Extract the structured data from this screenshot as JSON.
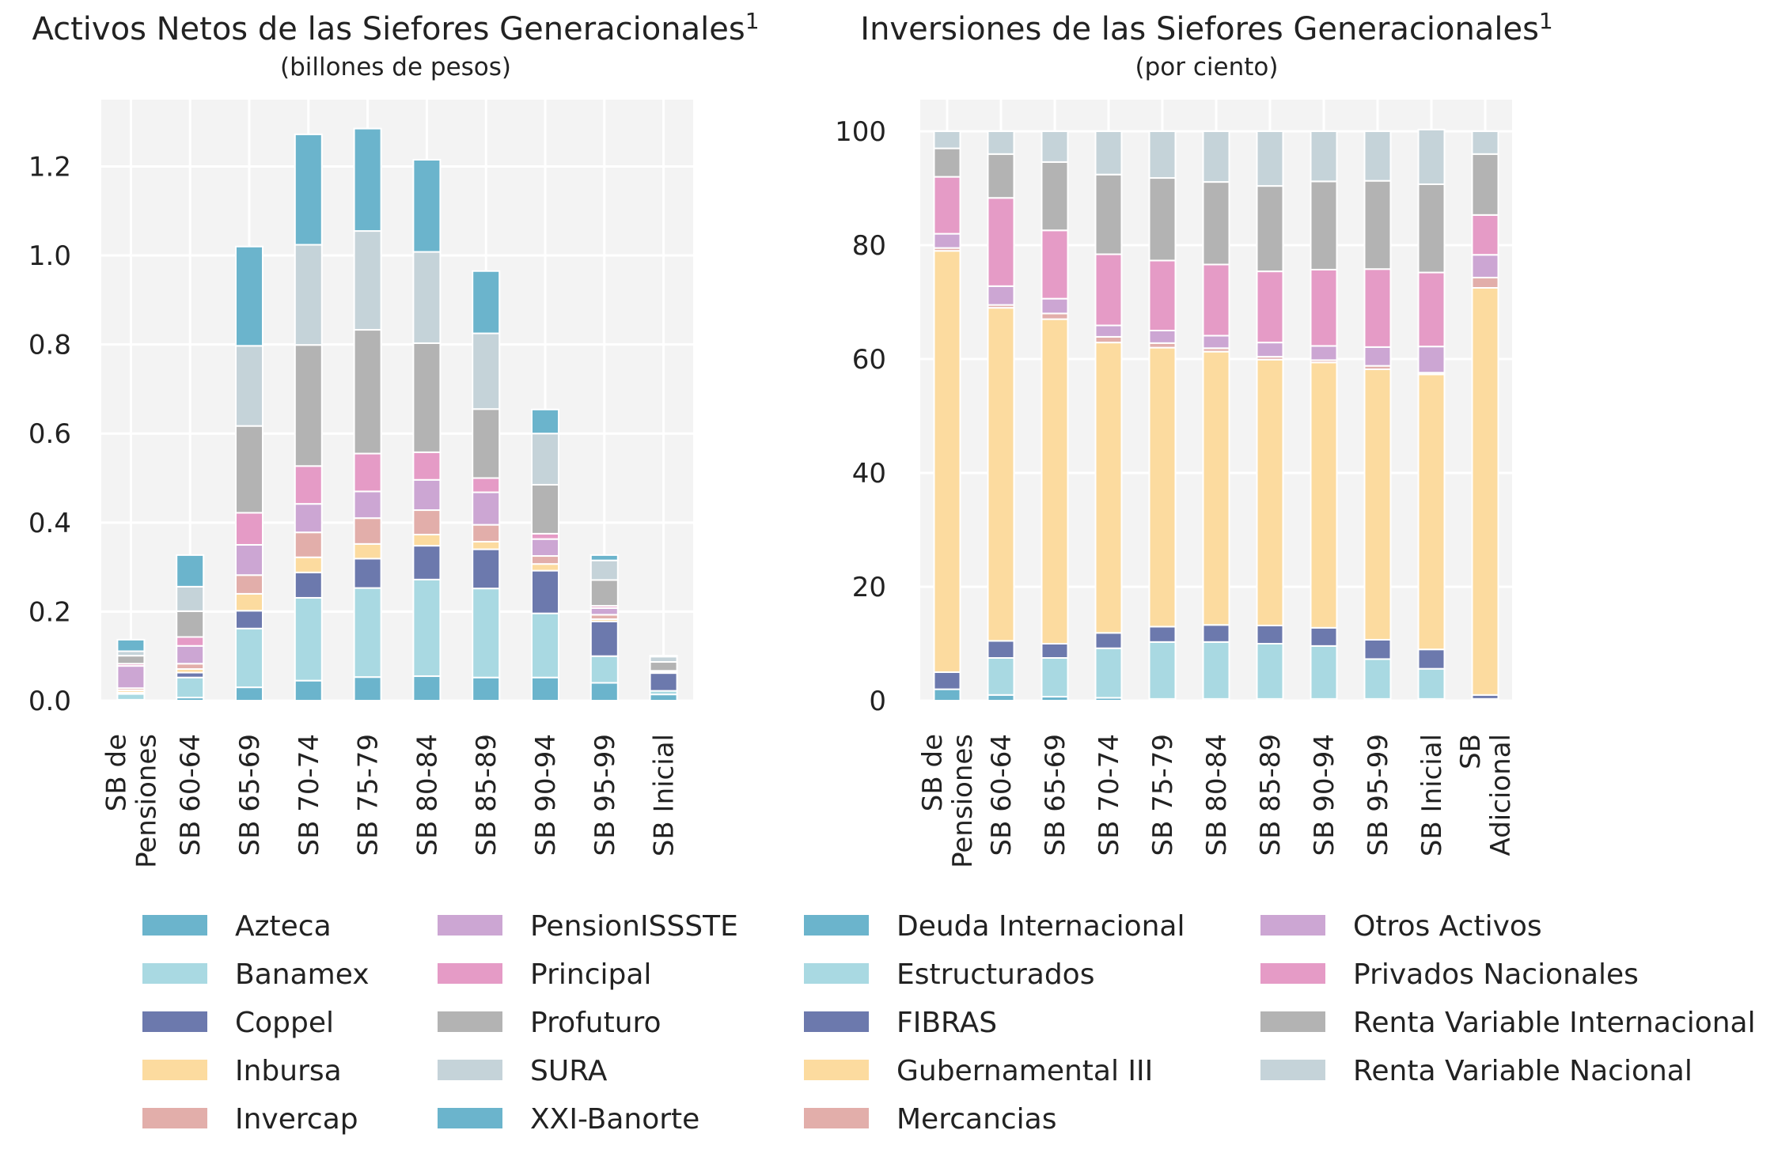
{
  "chart_data": [
    {
      "type": "bar",
      "stacked": true,
      "title": "Activos Netos de las Siefores Generacionales",
      "title_superscript": "1",
      "subtitle": "(billones de pesos)",
      "categories": [
        "SB de Pensiones",
        "SB 60-64",
        "SB 65-69",
        "SB 70-74",
        "SB 75-79",
        "SB 80-84",
        "SB 85-89",
        "SB 90-94",
        "SB 95-99",
        "SB Inicial"
      ],
      "ylim": [
        0,
        1.35
      ],
      "yticks": [
        "0.0",
        "0.2",
        "0.4",
        "0.6",
        "0.8",
        "1.0",
        "1.2"
      ],
      "grid": true,
      "series": [
        {
          "name": "Azteca",
          "color": "#6bb4cc",
          "values": [
            0.002,
            0.007,
            0.03,
            0.045,
            0.053,
            0.055,
            0.052,
            0.052,
            0.04,
            0.014
          ]
        },
        {
          "name": "Banamex",
          "color": "#a9d9e2",
          "values": [
            0.013,
            0.045,
            0.132,
            0.186,
            0.2,
            0.217,
            0.2,
            0.144,
            0.06,
            0.008
          ]
        },
        {
          "name": "Coppel",
          "color": "#6c79ad",
          "values": [
            0.003,
            0.011,
            0.04,
            0.057,
            0.066,
            0.076,
            0.088,
            0.096,
            0.078,
            0.04
          ]
        },
        {
          "name": "Inbursa",
          "color": "#fcdb9f",
          "values": [
            0.005,
            0.008,
            0.038,
            0.034,
            0.033,
            0.025,
            0.017,
            0.015,
            0.005,
            0.002
          ]
        },
        {
          "name": "Invercap",
          "color": "#e2aeaa",
          "values": [
            0.005,
            0.012,
            0.042,
            0.056,
            0.058,
            0.055,
            0.038,
            0.018,
            0.01,
            0.003
          ]
        },
        {
          "name": "PensionISSSTE",
          "color": "#cca6d3",
          "values": [
            0.05,
            0.04,
            0.068,
            0.064,
            0.06,
            0.068,
            0.073,
            0.038,
            0.015,
            0.0
          ]
        },
        {
          "name": "Principal",
          "color": "#e59bc6",
          "values": [
            0.005,
            0.02,
            0.072,
            0.085,
            0.085,
            0.062,
            0.032,
            0.012,
            0.005,
            0.0
          ]
        },
        {
          "name": "Profuturo",
          "color": "#b3b3b3",
          "values": [
            0.018,
            0.058,
            0.195,
            0.272,
            0.278,
            0.245,
            0.155,
            0.11,
            0.058,
            0.02
          ]
        },
        {
          "name": "SURA",
          "color": "#c5d3d9",
          "values": [
            0.01,
            0.055,
            0.18,
            0.225,
            0.222,
            0.205,
            0.17,
            0.115,
            0.044,
            0.012
          ]
        },
        {
          "name": "XXI-Banorte",
          "color": "#6bb4cc",
          "values": [
            0.026,
            0.071,
            0.223,
            0.248,
            0.23,
            0.207,
            0.14,
            0.054,
            0.012,
            0.002
          ]
        }
      ]
    },
    {
      "type": "bar",
      "stacked": true,
      "title": "Inversiones de las Siefores Generacionales",
      "title_superscript": "1",
      "subtitle": "(por ciento)",
      "categories": [
        "SB de Pensiones",
        "SB 60-64",
        "SB 65-69",
        "SB 70-74",
        "SB 75-79",
        "SB 80-84",
        "SB 85-89",
        "SB 90-94",
        "SB 95-99",
        "SB Inicial",
        "SB Adicional"
      ],
      "ylim": [
        0,
        100
      ],
      "yticks": [
        "0",
        "20",
        "40",
        "60",
        "80",
        "100"
      ],
      "grid": true,
      "series": [
        {
          "name": "Deuda Internacional",
          "color": "#6bb4cc",
          "values": [
            2.0,
            1.0,
            0.7,
            0.5,
            0.3,
            0.3,
            0.3,
            0.3,
            0.3,
            0.3,
            0.0
          ]
        },
        {
          "name": "Estructurados",
          "color": "#a9d9e2",
          "values": [
            0.0,
            6.5,
            6.8,
            8.7,
            10.0,
            10.0,
            9.7,
            9.3,
            7.0,
            5.3,
            0.3
          ]
        },
        {
          "name": "FIBRAS",
          "color": "#6c79ad",
          "values": [
            3.0,
            3.0,
            2.5,
            2.7,
            2.7,
            3.0,
            3.2,
            3.2,
            3.4,
            3.4,
            0.7
          ]
        },
        {
          "name": "Gubernamental III",
          "color": "#fcdb9f",
          "values": [
            74.0,
            58.5,
            57.0,
            51.0,
            49.0,
            48.0,
            46.7,
            46.6,
            47.5,
            48.3,
            71.5
          ]
        },
        {
          "name": "Mercancias",
          "color": "#e2aeaa",
          "values": [
            0.5,
            0.5,
            1.0,
            1.0,
            0.8,
            0.6,
            0.5,
            0.4,
            0.6,
            0.3,
            1.8
          ]
        },
        {
          "name": "Otros Activos",
          "color": "#cca6d3",
          "values": [
            2.5,
            3.3,
            2.6,
            2.0,
            2.2,
            2.2,
            2.5,
            2.5,
            3.3,
            4.6,
            4.0
          ]
        },
        {
          "name": "Privados Nacionales",
          "color": "#e59bc6",
          "values": [
            10.0,
            15.5,
            12.0,
            12.5,
            12.3,
            12.5,
            12.5,
            13.4,
            13.7,
            13.0,
            7.0
          ]
        },
        {
          "name": "Renta Variable Internacional",
          "color": "#b3b3b3",
          "values": [
            5.0,
            7.7,
            12.0,
            14.0,
            14.5,
            14.5,
            15.0,
            15.5,
            15.5,
            15.5,
            10.7
          ]
        },
        {
          "name": "Renta Variable Nacional",
          "color": "#c5d3d9",
          "values": [
            3.0,
            4.0,
            5.4,
            7.6,
            8.2,
            8.9,
            9.6,
            8.8,
            8.7,
            9.6,
            4.0
          ]
        }
      ]
    }
  ]
}
